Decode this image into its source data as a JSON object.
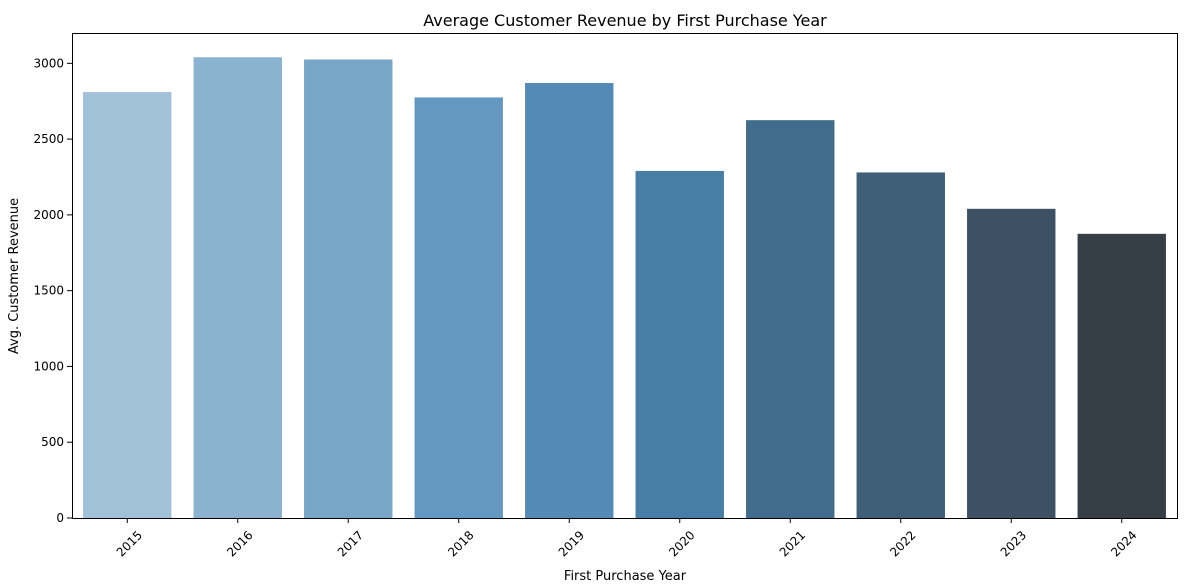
{
  "chart_data": {
    "type": "bar",
    "title": "Average Customer Revenue by First Purchase Year",
    "xlabel": "First Purchase Year",
    "ylabel": "Avg. Customer Revenue",
    "categories": [
      "2015",
      "2016",
      "2017",
      "2018",
      "2019",
      "2020",
      "2021",
      "2022",
      "2023",
      "2024"
    ],
    "values": [
      2810,
      3040,
      3025,
      2775,
      2870,
      2290,
      2625,
      2280,
      2040,
      1875
    ],
    "ylim": [
      0,
      3200
    ],
    "yticks": [
      0,
      500,
      1000,
      1500,
      2000,
      2500,
      3000
    ],
    "ytick_labels": [
      "0",
      "500",
      "1000",
      "1500",
      "2000",
      "2500",
      "3000"
    ],
    "colors": [
      "#a0c1d8",
      "#8bb2cf",
      "#78a6c7",
      "#6498c0",
      "#538bb6",
      "#477ea5",
      "#416c8c",
      "#3e5f77",
      "#3c5164",
      "#373f46"
    ],
    "grid": false,
    "legend": "none"
  }
}
